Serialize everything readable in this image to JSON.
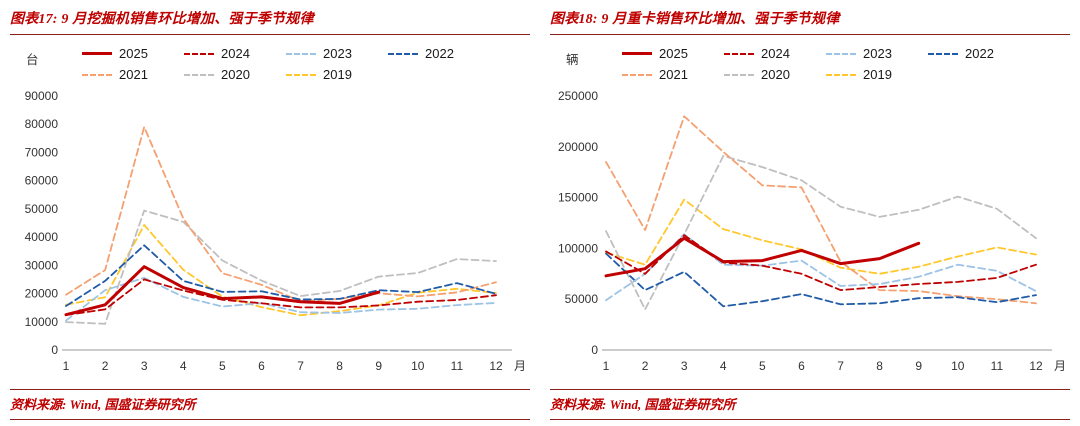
{
  "chart_data": [
    {
      "type": "line",
      "title": "图表17: 9 月挖掘机销售环比增加、强于季节规律",
      "unit": "台",
      "source": "资料来源: Wind, 国盛证券研究所",
      "x": [
        1,
        2,
        3,
        4,
        5,
        6,
        7,
        8,
        9,
        10,
        11,
        12
      ],
      "x_suffix": "月",
      "ylim": [
        0,
        90000
      ],
      "ytick_step": 10000,
      "grid": false,
      "legend_position": "top",
      "series": [
        {
          "name": "2025",
          "color": "#C00000",
          "style": "solid",
          "values": [
            12500,
            16000,
            29500,
            22100,
            18200,
            18800,
            17100,
            16500,
            20500
          ]
        },
        {
          "name": "2024",
          "color": "#C00000",
          "style": "dashed",
          "values": [
            12400,
            14400,
            25000,
            21100,
            17800,
            16600,
            15100,
            15100,
            15800,
            17100,
            17700,
            19400
          ]
        },
        {
          "name": "2023",
          "color": "#9DC3E6",
          "style": "dashed",
          "values": [
            10400,
            21200,
            25600,
            18800,
            15400,
            16600,
            13400,
            13100,
            14300,
            14600,
            15900,
            16700
          ]
        },
        {
          "name": "2022",
          "color": "#1F5BA8",
          "style": "dashed",
          "values": [
            15600,
            24500,
            37100,
            24500,
            20600,
            20800,
            17900,
            18100,
            21200,
            20500,
            23700,
            19900
          ]
        },
        {
          "name": "2021",
          "color": "#F4A071",
          "style": "dashed",
          "values": [
            19600,
            28300,
            79000,
            46600,
            27200,
            23100,
            17300,
            18100,
            20100,
            19000,
            20400,
            24000
          ]
        },
        {
          "name": "2020",
          "color": "#BFBFBF",
          "style": "dashed",
          "values": [
            9900,
            9300,
            49400,
            45400,
            31700,
            24600,
            19100,
            20900,
            26000,
            27300,
            32200,
            31500
          ]
        },
        {
          "name": "2019",
          "color": "#FFC72C",
          "style": "dashed",
          "values": [
            16000,
            18700,
            44300,
            28400,
            18900,
            15200,
            12300,
            13800,
            15800,
            20300,
            21700,
            20200
          ]
        }
      ]
    },
    {
      "type": "line",
      "title": "图表18: 9 月重卡销售环比增加、强于季节规律",
      "unit": "辆",
      "source": "资料来源: Wind, 国盛证券研究所",
      "x": [
        1,
        2,
        3,
        4,
        5,
        6,
        7,
        8,
        9,
        10,
        11,
        12
      ],
      "x_suffix": "月",
      "ylim": [
        0,
        250000
      ],
      "ytick_step": 50000,
      "grid": false,
      "legend_position": "top",
      "series": [
        {
          "name": "2025",
          "color": "#C00000",
          "style": "solid",
          "values": [
            73000,
            80000,
            110000,
            87000,
            88000,
            98000,
            85000,
            90000,
            105000
          ]
        },
        {
          "name": "2024",
          "color": "#C00000",
          "style": "dashed",
          "values": [
            97000,
            75000,
            113000,
            86000,
            83000,
            75000,
            59000,
            62000,
            65000,
            67000,
            71000,
            84000
          ]
        },
        {
          "name": "2023",
          "color": "#9DC3E6",
          "style": "dashed",
          "values": [
            49000,
            75000,
            114000,
            84000,
            83000,
            88000,
            63000,
            65000,
            72000,
            84000,
            78000,
            58000
          ]
        },
        {
          "name": "2022",
          "color": "#1F5BA8",
          "style": "dashed",
          "values": [
            95000,
            59000,
            77000,
            43000,
            48000,
            55000,
            45000,
            46000,
            51000,
            52000,
            47000,
            54000
          ]
        },
        {
          "name": "2021",
          "color": "#F4A071",
          "style": "dashed",
          "values": [
            185000,
            118000,
            230000,
            195000,
            162000,
            160000,
            87000,
            59000,
            58000,
            53000,
            50000,
            46000
          ]
        },
        {
          "name": "2020",
          "color": "#BFBFBF",
          "style": "dashed",
          "values": [
            117000,
            40000,
            114000,
            191000,
            180000,
            167000,
            141000,
            131000,
            138000,
            151000,
            139000,
            110000
          ]
        },
        {
          "name": "2019",
          "color": "#FFC72C",
          "style": "dashed",
          "values": [
            96000,
            84000,
            148000,
            119000,
            108000,
            99000,
            81000,
            75000,
            82000,
            92000,
            101000,
            94000
          ]
        }
      ]
    }
  ],
  "style": {
    "accent_red": "#BF0000",
    "rule_color": "#8B1F1B"
  }
}
